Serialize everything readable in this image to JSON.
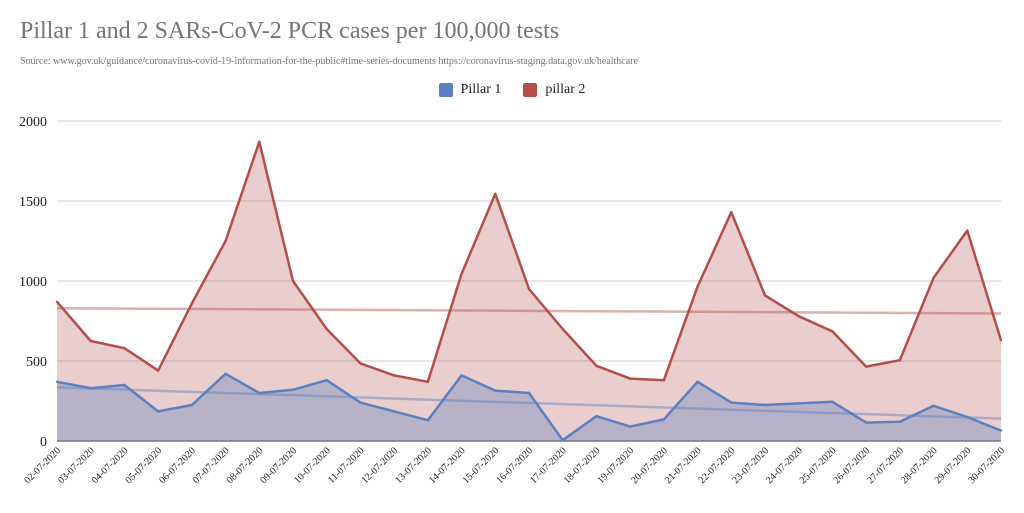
{
  "chart_data": {
    "type": "area",
    "title": "Pillar 1 and 2 SARs-CoV-2 PCR cases per 100,000 tests",
    "subtitle": "Source: www.gov.uk/guidance/coronavirus-covid-19-information-for-the-public#time-series-documents  https://coronavirus-staging.data.gov.uk/healthcare",
    "xlabel": "",
    "ylabel": "",
    "ylim": [
      0,
      2000
    ],
    "yticks": [
      "0",
      "500",
      "1000",
      "1500",
      "2000"
    ],
    "grid": true,
    "legend_position": "top",
    "categories": [
      "02-07-2020",
      "03-07-2020",
      "04-07-2020",
      "05-07-2020",
      "06-07-2020",
      "07-07-2020",
      "08-07-2020",
      "09-07-2020",
      "10-07-2020",
      "11-07-2020",
      "12-07-2020",
      "13-07-2020",
      "14-07-2020",
      "15-07-2020",
      "16-07-2020",
      "17-07-2020",
      "18-07-2020",
      "19-07-2020",
      "20-07-2020",
      "21-07-2020",
      "22-07-2020",
      "23-07-2020",
      "24-07-2020",
      "25-07-2020",
      "26-07-2020",
      "27-07-2020",
      "28-07-2020",
      "29-07-2020",
      "30-07-2020"
    ],
    "series": [
      {
        "name": "Pillar 1",
        "color": "#5b7fbf",
        "values": [
          370,
          330,
          350,
          185,
          225,
          420,
          300,
          320,
          380,
          240,
          185,
          130,
          410,
          315,
          300,
          5,
          155,
          90,
          135,
          370,
          240,
          225,
          235,
          245,
          115,
          120,
          220,
          150,
          65
        ],
        "trendline": [
          335,
          140
        ]
      },
      {
        "name": "pillar 2",
        "color": "#b44e4a",
        "values": [
          870,
          625,
          580,
          440,
          860,
          1250,
          1870,
          1000,
          700,
          485,
          410,
          370,
          1045,
          1545,
          950,
          700,
          470,
          390,
          380,
          965,
          1430,
          910,
          780,
          685,
          465,
          505,
          1020,
          1315,
          630
        ],
        "trendline": [
          830,
          797
        ]
      }
    ]
  }
}
